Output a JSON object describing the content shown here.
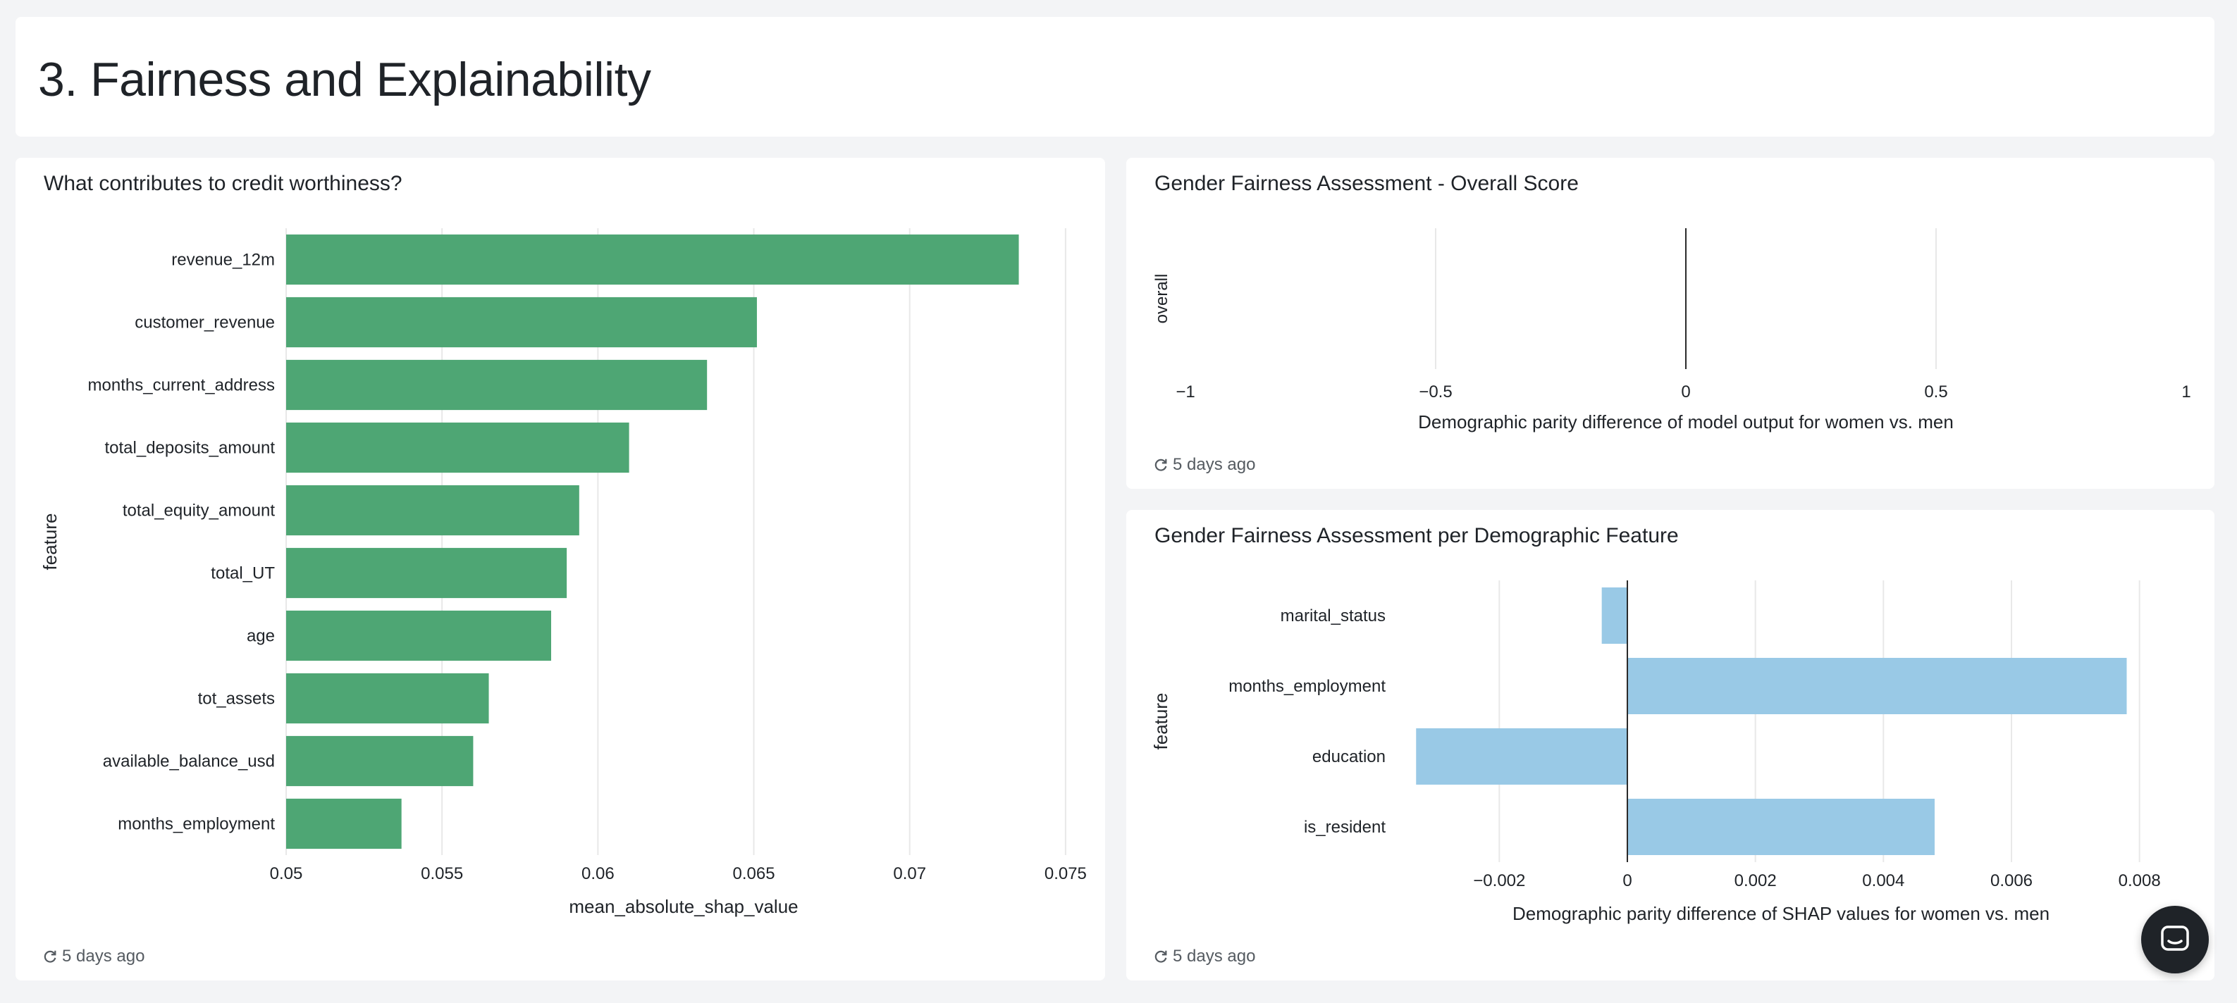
{
  "page": {
    "title": "3. Fairness and Explainability"
  },
  "cards": {
    "shap": {
      "title": "What contributes to credit worthiness?",
      "refreshed": "5 days ago"
    },
    "overall": {
      "title": "Gender Fairness Assessment - Overall Score",
      "refreshed": "5 days ago"
    },
    "per_feature": {
      "title": "Gender Fairness Assessment per Demographic Feature",
      "refreshed": "5 days ago"
    }
  },
  "icons": {
    "refresh": "refresh-icon",
    "chat": "chat-icon"
  },
  "colors": {
    "green_bar": "#4ea674",
    "blue_bar": "#99c9e6",
    "background": "#f3f4f6"
  },
  "chart_data": [
    {
      "type": "bar",
      "orientation": "horizontal",
      "categories": [
        "revenue_12m",
        "customer_revenue",
        "months_current_address",
        "total_deposits_amount",
        "total_equity_amount",
        "total_UT",
        "age",
        "tot_assets",
        "available_balance_usd",
        "months_employment"
      ],
      "values": [
        0.0735,
        0.0651,
        0.0635,
        0.061,
        0.0594,
        0.059,
        0.0585,
        0.0565,
        0.056,
        0.0537
      ],
      "xlabel": "mean_absolute_shap_value",
      "ylabel": "feature",
      "xlim": [
        0.05,
        0.0755
      ],
      "xticks": [
        0.05,
        0.055,
        0.06,
        0.065,
        0.07,
        0.075
      ],
      "xtick_labels": [
        "0.05",
        "0.055",
        "0.06",
        "0.065",
        "0.07",
        "0.075"
      ],
      "grid": true
    },
    {
      "type": "bar",
      "orientation": "horizontal",
      "categories": [
        "overall"
      ],
      "values": [
        0
      ],
      "xlabel": "Demographic parity difference of model output for women vs. men",
      "ylabel": "",
      "xlim": [
        -1,
        1
      ],
      "xticks": [
        -1,
        -0.5,
        0,
        0.5,
        1
      ],
      "xtick_labels": [
        "−1",
        "−0.5",
        "0",
        "0.5",
        "1"
      ],
      "grid": true
    },
    {
      "type": "bar",
      "orientation": "horizontal",
      "categories": [
        "marital_status",
        "months_employment",
        "education",
        "is_resident"
      ],
      "values": [
        -0.0004,
        0.0078,
        -0.0033,
        0.0048
      ],
      "xlabel": "Demographic parity difference of SHAP values for women vs. men",
      "ylabel": "feature",
      "xlim": [
        -0.0036,
        0.0084
      ],
      "xticks": [
        -0.002,
        0,
        0.002,
        0.004,
        0.006,
        0.008
      ],
      "xtick_labels": [
        "−0.002",
        "0",
        "0.002",
        "0.004",
        "0.006",
        "0.008"
      ],
      "grid": true
    }
  ]
}
